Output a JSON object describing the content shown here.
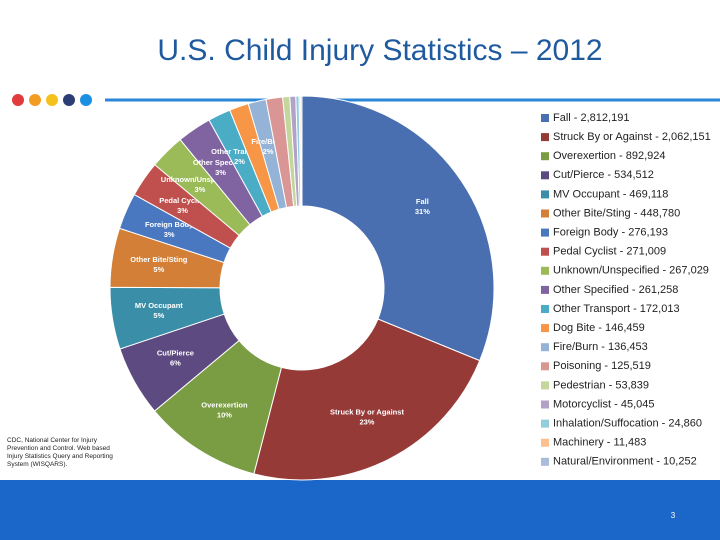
{
  "chart_data": {
    "type": "pie",
    "title": "U.S. Child Injury Statistics – 2012",
    "source": "CDC, National Center for Injury Prevention and Control. Web based Injury Statistics Query and Reporting System (WISQARS).",
    "page_number": "3",
    "donut": true,
    "legend_labels": [
      "Fall - 2,812,191",
      "Struck By or Against - 2,062,151",
      "Overexertion - 892,924",
      "Cut/Pierce - 534,512",
      "MV Occupant - 469,118",
      "Other Bite/Sting - 448,780",
      "Foreign Body - 276,193",
      "Pedal Cyclist - 271,009",
      "Unknown/Unspecified - 267,029",
      "Other Specified - 261,258",
      "Other Transport - 172,013",
      "Dog Bite - 146,459",
      "Fire/Burn - 136,453",
      "Poisoning - 125,519",
      "Pedestrian - 53,839",
      "Motorcyclist - 45,045",
      "Inhalation/Suffocation - 24,860",
      "Machinery - 11,483",
      "Natural/Environment - 10,252"
    ],
    "values": [
      2812191,
      2062151,
      892924,
      534512,
      469118,
      448780,
      276193,
      271009,
      267029,
      261258,
      172013,
      146459,
      136453,
      125519,
      53839,
      45045,
      24860,
      11483,
      10252
    ],
    "slice_names": [
      "Fall",
      "Struck By or Against",
      "Overexertion",
      "Cut/Pierce",
      "MV Occupant",
      "Other Bite/Sting",
      "Foreign Body",
      "Pedal Cyclist",
      "Unknown/Unspecified",
      "Other Specified",
      "Other Transport",
      null,
      "Fire/Burn",
      null,
      null,
      null,
      null,
      null,
      null
    ],
    "slice_percent_labels": [
      "31%",
      "23%",
      "10%",
      "6%",
      "5%",
      "5%",
      "3%",
      "3%",
      "3%",
      "3%",
      "2%",
      null,
      "2%",
      null,
      null,
      null,
      null,
      null,
      null
    ],
    "colors": [
      "#4a6fb0",
      "#963a38",
      "#7a9c42",
      "#5d4a80",
      "#3b8ea8",
      "#d37f37",
      "#4a78c0",
      "#c0504d",
      "#9bbb59",
      "#8064a2",
      "#4bacc6",
      "#f79646",
      "#95b3d7",
      "#d99694",
      "#c3d69b",
      "#b3a2c7",
      "#93cddd",
      "#fac090",
      "#a9bcd9"
    ]
  }
}
